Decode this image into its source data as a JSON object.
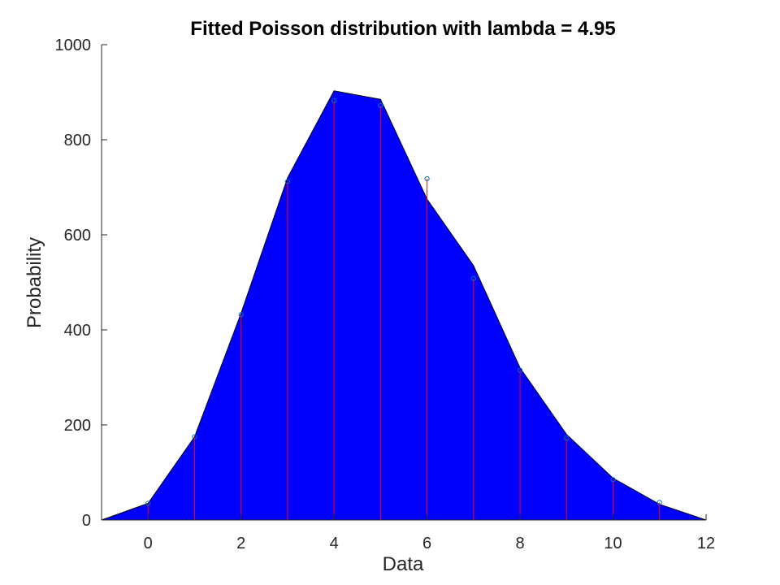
{
  "chart_data": {
    "type": "area",
    "title": "Fitted Poisson distribution with lambda = 4.95",
    "xlabel": "Data",
    "ylabel": "Probability",
    "xlim": [
      -1,
      12
    ],
    "ylim": [
      0,
      1000
    ],
    "xticks": [
      0,
      2,
      4,
      6,
      8,
      10,
      12
    ],
    "yticks": [
      0,
      200,
      400,
      600,
      800,
      1000
    ],
    "grid": false,
    "fitted_curve": {
      "x": [
        -1,
        0,
        1,
        2,
        3,
        4,
        5,
        6,
        7,
        8,
        9,
        10,
        11,
        12
      ],
      "y": [
        0,
        35,
        175,
        435,
        720,
        903,
        885,
        675,
        535,
        320,
        180,
        88,
        33,
        0
      ]
    },
    "observed": {
      "x": [
        0,
        1,
        2,
        3,
        4,
        5,
        6,
        7,
        8,
        9,
        10,
        11
      ],
      "y": [
        35,
        175,
        432,
        712,
        882,
        872,
        718,
        508,
        315,
        172,
        85,
        37
      ]
    },
    "colors": {
      "area_fill": "#0000ff",
      "stem": "#ff0000",
      "marker": "#0072bd",
      "axis": "#262626"
    }
  }
}
